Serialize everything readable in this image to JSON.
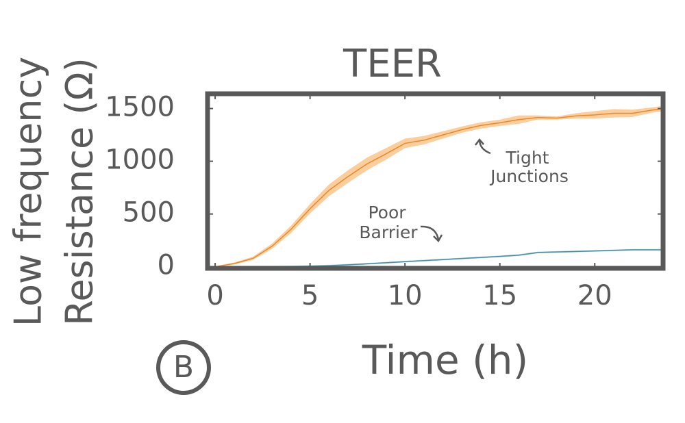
{
  "chart_data": {
    "type": "line",
    "title": "TEER",
    "xlabel": "Time (h)",
    "ylabel": [
      "Low frequency",
      "Resistance (Ω)"
    ],
    "panel_label": "B",
    "x": [
      0,
      1,
      2,
      3,
      4,
      5,
      6,
      7,
      8,
      9,
      10,
      11,
      12,
      13,
      14,
      15,
      16,
      17,
      18,
      19,
      20,
      21,
      22,
      23,
      23.6
    ],
    "series": [
      {
        "name": "Tight Junctions",
        "color": "#e8892a",
        "band_color": "#fbc58c",
        "values": [
          0,
          30,
          80,
          195,
          355,
          550,
          725,
          855,
          975,
          1070,
          1170,
          1200,
          1250,
          1300,
          1340,
          1365,
          1395,
          1415,
          1410,
          1430,
          1440,
          1455,
          1455,
          1485,
          1500
        ],
        "upper": [
          5,
          40,
          95,
          220,
          390,
          595,
          780,
          915,
          1035,
          1125,
          1215,
          1240,
          1285,
          1330,
          1370,
          1395,
          1435,
          1435,
          1425,
          1455,
          1475,
          1495,
          1490,
          1510,
          1525
        ],
        "lower": [
          -5,
          20,
          65,
          170,
          320,
          505,
          670,
          795,
          915,
          1015,
          1125,
          1160,
          1215,
          1270,
          1310,
          1335,
          1355,
          1395,
          1395,
          1405,
          1405,
          1415,
          1420,
          1460,
          1475
        ]
      },
      {
        "name": "Poor Barrier",
        "color": "#4a8fa3",
        "band_color": "#a9d3de",
        "values": [
          0,
          0,
          0,
          0,
          2,
          5,
          10,
          18,
          28,
          38,
          48,
          58,
          68,
          78,
          88,
          98,
          110,
          135,
          140,
          145,
          150,
          155,
          160,
          160,
          160
        ],
        "upper": [
          8,
          8,
          8,
          8,
          10,
          13,
          18,
          26,
          36,
          46,
          56,
          66,
          76,
          86,
          96,
          106,
          118,
          143,
          148,
          153,
          158,
          163,
          168,
          168,
          168
        ],
        "lower": [
          -8,
          -8,
          -8,
          -8,
          -6,
          -3,
          2,
          10,
          20,
          30,
          40,
          50,
          60,
          70,
          80,
          90,
          102,
          127,
          132,
          137,
          142,
          147,
          152,
          152,
          152
        ]
      }
    ],
    "annotations": [
      {
        "lines": [
          "Tight",
          "Junctions"
        ]
      },
      {
        "lines": [
          "Poor",
          "Barrier"
        ]
      }
    ],
    "xlim": [
      -0.4,
      23.6
    ],
    "ylim": [
      -15,
      1640
    ],
    "xticks": [
      0,
      5,
      10,
      15,
      20
    ],
    "yticks": [
      0,
      500,
      1000,
      1500
    ]
  }
}
